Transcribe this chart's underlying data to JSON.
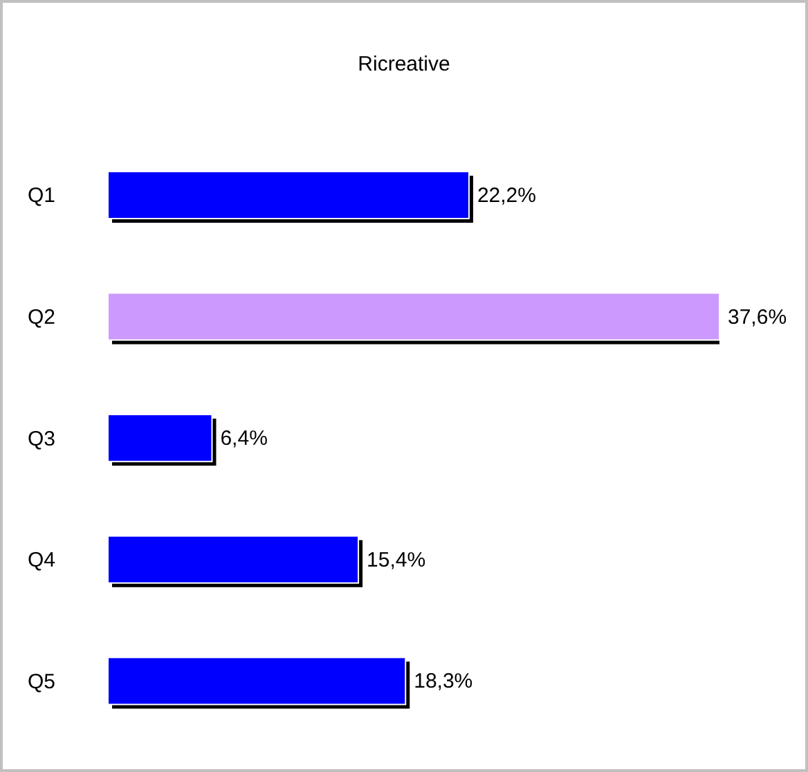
{
  "chart_data": {
    "type": "bar",
    "orientation": "horizontal",
    "title": "Ricreative",
    "categories": [
      "Q1",
      "Q2",
      "Q3",
      "Q4",
      "Q5"
    ],
    "values": [
      22.2,
      37.6,
      6.4,
      15.4,
      18.3
    ],
    "value_labels": [
      "22,2%",
      "37,6%",
      "6,4%",
      "15,4%",
      "18,3%"
    ],
    "colors": [
      "#0000ff",
      "#cc99ff",
      "#0000ff",
      "#0000ff",
      "#0000ff"
    ],
    "grid": false,
    "legend": false
  }
}
